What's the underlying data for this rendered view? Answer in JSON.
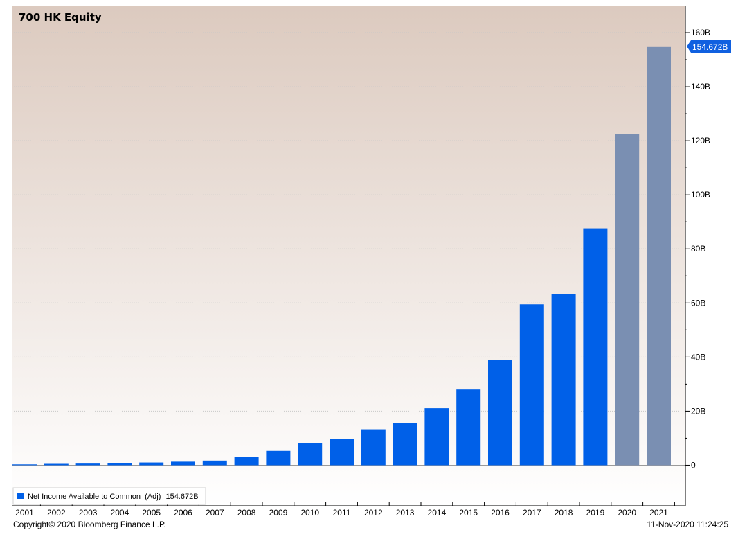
{
  "title": "700 HK Equity",
  "footer": {
    "copyright": "Copyright© 2020 Bloomberg Finance L.P.",
    "timestamp": "11-Nov-2020 11:24:25"
  },
  "legend": {
    "label": "Net Income Available to Common  (Adj)",
    "value": "154.672B",
    "placement": "bottom-left"
  },
  "callout": {
    "label": "154.672B"
  },
  "colors": {
    "actual": "#0060e8",
    "estimate": "#7a8fb2",
    "callout": "#1060e0",
    "bg_top": "#dccabf",
    "bg_bottom": "#ffffff"
  },
  "chart_data": {
    "type": "bar",
    "categories": [
      "2001",
      "2002",
      "2003",
      "2004",
      "2005",
      "2006",
      "2007",
      "2008",
      "2009",
      "2010",
      "2011",
      "2012",
      "2013",
      "2014",
      "2015",
      "2016",
      "2017",
      "2018",
      "2019",
      "2020",
      "2021"
    ],
    "series": [
      {
        "name": "Net Income Available to Common  (Adj)",
        "values": [
          0.3,
          0.5,
          0.6,
          0.8,
          1.0,
          1.3,
          1.7,
          3.0,
          5.3,
          8.2,
          9.8,
          13.3,
          15.6,
          21.1,
          28.0,
          38.9,
          59.5,
          63.3,
          87.6,
          122.5,
          154.672
        ],
        "estimate_from": "2020"
      }
    ],
    "y_ticks": [
      {
        "value": 0,
        "label": "0"
      },
      {
        "value": 20,
        "label": "20B"
      },
      {
        "value": 40,
        "label": "40B"
      },
      {
        "value": 60,
        "label": "60B"
      },
      {
        "value": 80,
        "label": "80B"
      },
      {
        "value": 100,
        "label": "100B"
      },
      {
        "value": 120,
        "label": "120B"
      },
      {
        "value": 140,
        "label": "140B"
      },
      {
        "value": 160,
        "label": "160B"
      }
    ],
    "ylim": [
      -15,
      170
    ],
    "y_axis_side": "right",
    "grid": true
  }
}
